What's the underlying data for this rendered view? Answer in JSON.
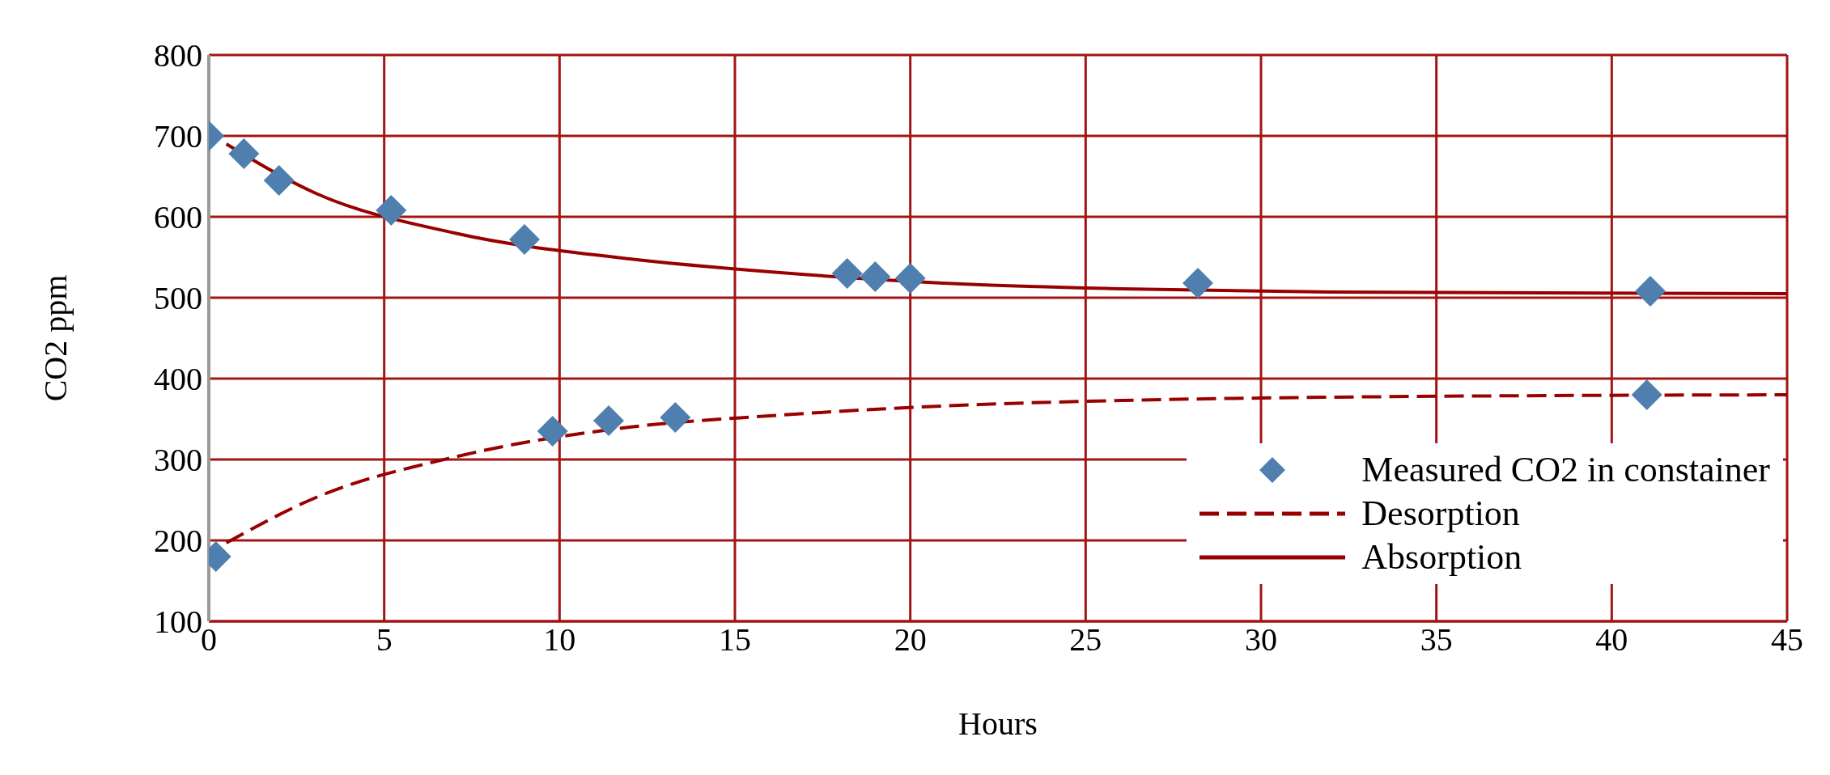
{
  "chart_data": {
    "type": "scatter",
    "xlabel": "Hours",
    "ylabel": "CO2 ppm",
    "xlim": [
      0,
      45
    ],
    "xticks": [
      0,
      5,
      10,
      15,
      20,
      25,
      30,
      35,
      40,
      45
    ],
    "ylim": [
      100,
      800
    ],
    "yticks": [
      100,
      200,
      300,
      400,
      500,
      600,
      700,
      800
    ],
    "grid": true,
    "legend": "bottom right",
    "series": [
      {
        "name": "Measured CO2 in constainer",
        "marker": "diamond",
        "color": "#4f7faf",
        "x": [
          0,
          1,
          2,
          5.2,
          9,
          18.2,
          19,
          20,
          28.2,
          41.1,
          0.2,
          9.8,
          11.4,
          13.3,
          41
        ],
        "values": [
          700,
          678,
          645,
          608,
          572,
          530,
          526,
          524,
          518,
          508,
          180,
          335,
          348,
          352,
          380
        ]
      },
      {
        "name": "Desorption",
        "type": "line",
        "marker": "none",
        "line_style": "dashed",
        "color": "#990000",
        "x": [
          0.5,
          3,
          7,
          12,
          16,
          22,
          26,
          32,
          45
        ],
        "values": [
          197,
          252,
          303,
          340,
          354,
          368,
          373,
          377,
          380
        ]
      },
      {
        "name": "Absorption",
        "type": "line",
        "marker": "none",
        "line_style": "solid",
        "color": "#990000",
        "x": [
          0.5,
          3,
          7,
          12,
          16,
          22,
          26,
          32,
          45
        ],
        "values": [
          690,
          630,
          580,
          548,
          532,
          516,
          511,
          507,
          505
        ]
      }
    ]
  }
}
